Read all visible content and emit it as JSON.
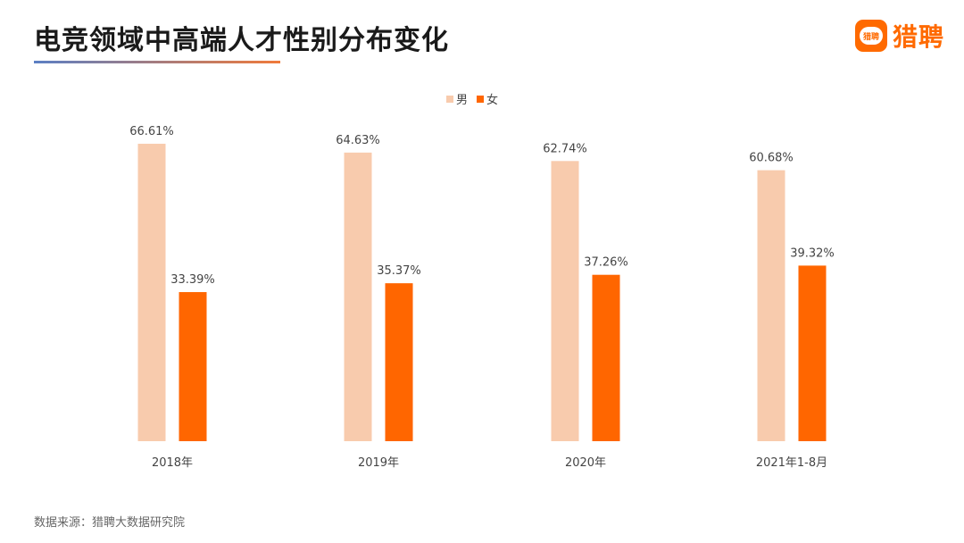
{
  "header": {
    "title": "电竞领域中高端人才性别分布变化",
    "brand_name": "猎聘",
    "brand_icon_text": "猎聘"
  },
  "footer": {
    "source": "数据来源：猎聘大数据研究院"
  },
  "colors": {
    "male": "#f8cbad",
    "female": "#ff6600",
    "accent": "#ff6a00"
  },
  "chart_data": {
    "type": "bar",
    "categories": [
      "2018年",
      "2019年",
      "2020年",
      "2021年1-8月"
    ],
    "series": [
      {
        "name": "男",
        "values": [
          66.61,
          64.63,
          62.74,
          60.68
        ],
        "labels": [
          "66.61%",
          "64.63%",
          "62.74%",
          "60.68%"
        ]
      },
      {
        "name": "女",
        "values": [
          33.39,
          35.37,
          37.26,
          39.32
        ],
        "labels": [
          "33.39%",
          "35.37%",
          "37.26%",
          "39.32%"
        ]
      }
    ],
    "title": "电竞领域中高端人才性别分布变化",
    "xlabel": "",
    "ylabel": "",
    "ylim": [
      0,
      76
    ],
    "grid": false,
    "legend": "top-center"
  }
}
